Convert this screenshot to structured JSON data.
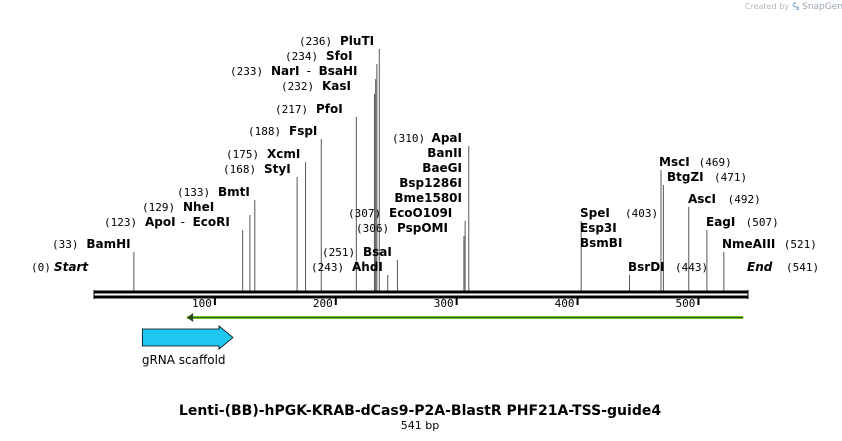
{
  "watermark": {
    "prefix": "Created by",
    "brand": "SnapGene"
  },
  "map": {
    "title": "Lenti-(BB)-hPGK-KRAB-dCas9-P2A-BlastR PHF21A-TSS-guide4",
    "length_label": "541 bp",
    "length_bp": 541,
    "start_label": "Start",
    "start_pos_label": "(0)",
    "end_label": "End",
    "end_pos_label": "(541)",
    "ticks": [
      {
        "label": "100",
        "bp": 100
      },
      {
        "label": "200",
        "bp": 200
      },
      {
        "label": "300",
        "bp": 300
      },
      {
        "label": "400",
        "bp": 400
      },
      {
        "label": "500",
        "bp": 500
      }
    ],
    "sites": [
      {
        "pos": "(33)",
        "bp": 33,
        "names": [
          "BamHI"
        ]
      },
      {
        "pos": "(123)",
        "bp": 123,
        "names": [
          "ApoI",
          "EcoRI"
        ]
      },
      {
        "pos": "(129)",
        "bp": 129,
        "names": [
          "NheI"
        ]
      },
      {
        "pos": "(133)",
        "bp": 133,
        "names": [
          "BmtI"
        ]
      },
      {
        "pos": "(168)",
        "bp": 168,
        "names": [
          "StyI"
        ]
      },
      {
        "pos": "(175)",
        "bp": 175,
        "names": [
          "XcmI"
        ]
      },
      {
        "pos": "(188)",
        "bp": 188,
        "names": [
          "FspI"
        ]
      },
      {
        "pos": "(217)",
        "bp": 217,
        "names": [
          "PfoI"
        ]
      },
      {
        "pos": "(232)",
        "bp": 232,
        "names": [
          "KasI"
        ]
      },
      {
        "pos": "(233)",
        "bp": 233,
        "names": [
          "NarI",
          "BsaHI"
        ]
      },
      {
        "pos": "(234)",
        "bp": 234,
        "names": [
          "SfoI"
        ]
      },
      {
        "pos": "(236)",
        "bp": 236,
        "names": [
          "PluTI"
        ]
      },
      {
        "pos": "(243)",
        "bp": 243,
        "names": [
          "AhdI"
        ]
      },
      {
        "pos": "(251)",
        "bp": 251,
        "names": [
          "BsaI"
        ]
      },
      {
        "pos": "(306)",
        "bp": 306,
        "names": [
          "PspOMI"
        ]
      },
      {
        "pos": "(307)",
        "bp": 307,
        "names": [
          "EcoO109I"
        ]
      },
      {
        "pos": "(310)",
        "bp": 310,
        "names": [
          "ApaI",
          "BanII",
          "BaeGI",
          "Bsp1286I",
          "Bme1580I"
        ]
      },
      {
        "pos": "(403)",
        "bp": 403,
        "names": [
          "SpeI",
          "Esp3I",
          "BsmBI"
        ]
      },
      {
        "pos": "(443)",
        "bp": 443,
        "names": [
          "BsrDI"
        ]
      },
      {
        "pos": "(469)",
        "bp": 469,
        "names": [
          "MscI"
        ]
      },
      {
        "pos": "(471)",
        "bp": 471,
        "names": [
          "BtgZI"
        ]
      },
      {
        "pos": "(492)",
        "bp": 492,
        "names": [
          "AscI"
        ]
      },
      {
        "pos": "(507)",
        "bp": 507,
        "names": [
          "EagI"
        ]
      },
      {
        "pos": "(521)",
        "bp": 521,
        "names": [
          "NmeAIII"
        ]
      }
    ],
    "features": [
      {
        "name": "gRNA scaffold",
        "from_bp": 40,
        "to_bp": 115,
        "direction": "forward",
        "color": "#1ec8f0",
        "outline": "#000000"
      }
    ],
    "primers": [
      {
        "from_bp": 77,
        "to_bp": 537,
        "direction": "reverse",
        "color": "#6bbf2a"
      }
    ],
    "colors": {
      "backbone": "#000000",
      "leader": "#555555",
      "text": "#000000"
    }
  }
}
